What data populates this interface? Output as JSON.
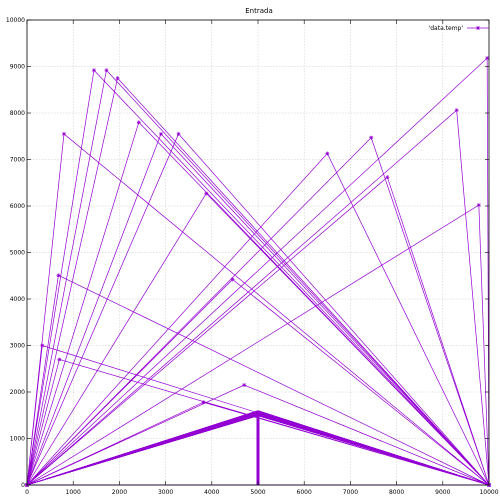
{
  "chart_data": {
    "type": "line",
    "title": "Entrada",
    "xlabel": "",
    "ylabel": "",
    "xlim": [
      0,
      10000
    ],
    "ylim": [
      0,
      10000
    ],
    "grid": true,
    "legend_position": "top-right",
    "color": "#9400d3",
    "x_ticks": [
      0,
      1000,
      2000,
      3000,
      4000,
      5000,
      6000,
      7000,
      8000,
      9000,
      10000
    ],
    "y_ticks": [
      0,
      1000,
      2000,
      3000,
      4000,
      5000,
      6000,
      7000,
      8000,
      9000,
      10000
    ],
    "x_tick_labels": [
      "0",
      "1000",
      "2000",
      "3000",
      "4000",
      "5000",
      "6000",
      "7000",
      "8000",
      "9000",
      "10000"
    ],
    "y_tick_labels": [
      "0",
      "1000",
      "2000",
      "3000",
      "4000",
      "5000",
      "6000",
      "7000",
      "8000",
      "9000",
      "10000"
    ],
    "series": [
      {
        "name": "'data.temp'",
        "points": [
          [
            0,
            0
          ],
          [
            9960,
            9180
          ],
          [
            10000,
            0
          ],
          [
            0,
            0
          ],
          [
            1450,
            8920
          ],
          [
            10000,
            0
          ],
          [
            0,
            0
          ],
          [
            1720,
            8920
          ],
          [
            10000,
            0
          ],
          [
            0,
            0
          ],
          [
            1960,
            8750
          ],
          [
            10000,
            0
          ],
          [
            0,
            0
          ],
          [
            9300,
            8060
          ],
          [
            10000,
            0
          ],
          [
            0,
            0
          ],
          [
            2420,
            7800
          ],
          [
            10000,
            0
          ],
          [
            0,
            0
          ],
          [
            800,
            7550
          ],
          [
            10000,
            0
          ],
          [
            0,
            0
          ],
          [
            2900,
            7550
          ],
          [
            10000,
            0
          ],
          [
            0,
            0
          ],
          [
            3280,
            7550
          ],
          [
            10000,
            0
          ],
          [
            0,
            0
          ],
          [
            7450,
            7470
          ],
          [
            10000,
            0
          ],
          [
            0,
            0
          ],
          [
            6500,
            7130
          ],
          [
            10000,
            0
          ],
          [
            0,
            0
          ],
          [
            7800,
            6620
          ],
          [
            10000,
            0
          ],
          [
            0,
            0
          ],
          [
            3880,
            6270
          ],
          [
            10000,
            0
          ],
          [
            0,
            0
          ],
          [
            9780,
            6020
          ],
          [
            10000,
            0
          ],
          [
            0,
            0
          ],
          [
            680,
            4510
          ],
          [
            10000,
            0
          ],
          [
            0,
            0
          ],
          [
            4450,
            4420
          ],
          [
            10000,
            0
          ],
          [
            0,
            0
          ],
          [
            330,
            3000
          ],
          [
            10000,
            0
          ],
          [
            0,
            0
          ],
          [
            700,
            2700
          ],
          [
            10000,
            0
          ],
          [
            0,
            0
          ],
          [
            4700,
            2150
          ],
          [
            10000,
            0
          ],
          [
            0,
            0
          ],
          [
            3820,
            1780
          ],
          [
            10000,
            0
          ]
        ]
      }
    ],
    "fan": {
      "apex_x": 5000,
      "apex_y": 1600,
      "count": 200
    }
  }
}
